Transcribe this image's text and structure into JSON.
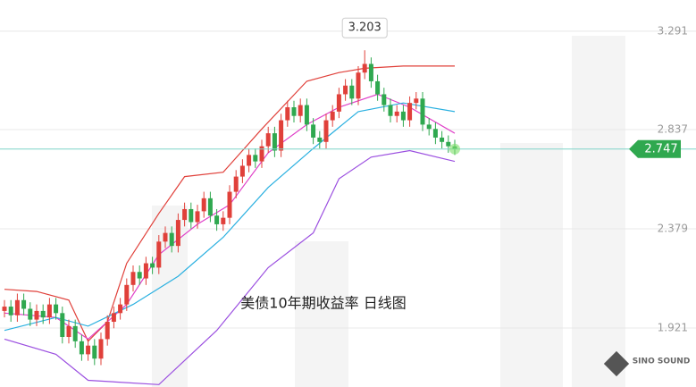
{
  "chart_data": {
    "type": "candlestick",
    "title": "美债10年期收益率  日线图",
    "watermark": "SINO SOUND",
    "up_color": "#e0403a",
    "down_color": "#2fa84f",
    "ylim": [
      1.649,
      3.435
    ],
    "yticks": [
      3.291,
      2.837,
      2.379,
      1.921
    ],
    "grid": true,
    "open": [
      2.0,
      2.02,
      1.98,
      2.05,
      2.01,
      1.96,
      2.0,
      1.97,
      2.03,
      1.99,
      1.88,
      1.93,
      1.86,
      1.8,
      1.84,
      1.78,
      1.87,
      1.95,
      1.99,
      2.03,
      2.12,
      2.18,
      2.15,
      2.22,
      2.2,
      2.32,
      2.36,
      2.3,
      2.42,
      2.47,
      2.41,
      2.46,
      2.52,
      2.44,
      2.4,
      2.43,
      2.55,
      2.62,
      2.67,
      2.72,
      2.69,
      2.76,
      2.82,
      2.74,
      2.88,
      2.94,
      2.9,
      2.95,
      2.86,
      2.8,
      2.78,
      2.88,
      2.92,
      3.0,
      3.04,
      2.98,
      3.1,
      3.14,
      3.06,
      3.0,
      2.95,
      2.9,
      2.92,
      2.88,
      2.96,
      2.98,
      2.86,
      2.84,
      2.8,
      2.78,
      2.76
    ],
    "high": [
      2.05,
      2.05,
      2.08,
      2.08,
      2.04,
      2.03,
      2.03,
      2.06,
      2.06,
      2.02,
      1.96,
      1.96,
      1.89,
      1.87,
      1.87,
      1.9,
      1.98,
      2.02,
      2.06,
      2.15,
      2.21,
      2.21,
      2.25,
      2.25,
      2.35,
      2.39,
      2.39,
      2.45,
      2.5,
      2.5,
      2.49,
      2.55,
      2.55,
      2.47,
      2.46,
      2.58,
      2.65,
      2.7,
      2.75,
      2.75,
      2.79,
      2.85,
      2.85,
      2.91,
      2.97,
      2.97,
      2.98,
      2.98,
      2.89,
      2.83,
      2.91,
      2.95,
      3.03,
      3.07,
      3.07,
      3.13,
      3.203,
      3.17,
      3.09,
      3.03,
      2.98,
      2.95,
      2.95,
      2.99,
      3.01,
      3.01,
      2.89,
      2.87,
      2.83,
      2.81,
      2.79
    ],
    "low": [
      1.97,
      1.95,
      1.95,
      1.98,
      1.93,
      1.93,
      1.94,
      1.94,
      1.96,
      1.85,
      1.85,
      1.83,
      1.77,
      1.77,
      1.75,
      1.75,
      1.84,
      1.92,
      1.96,
      2.0,
      2.09,
      2.12,
      2.12,
      2.17,
      2.17,
      2.29,
      2.27,
      2.27,
      2.39,
      2.38,
      2.38,
      2.43,
      2.41,
      2.37,
      2.37,
      2.4,
      2.52,
      2.59,
      2.64,
      2.66,
      2.66,
      2.73,
      2.71,
      2.71,
      2.85,
      2.87,
      2.87,
      2.83,
      2.77,
      2.75,
      2.75,
      2.85,
      2.89,
      2.97,
      2.95,
      2.95,
      3.07,
      3.03,
      2.97,
      2.92,
      2.87,
      2.87,
      2.85,
      2.85,
      2.93,
      2.83,
      2.81,
      2.77,
      2.75,
      2.73,
      2.72
    ],
    "close": [
      2.02,
      1.98,
      2.05,
      2.01,
      1.96,
      2.0,
      1.97,
      2.03,
      1.99,
      1.88,
      1.93,
      1.86,
      1.8,
      1.84,
      1.78,
      1.87,
      1.95,
      1.99,
      2.03,
      2.12,
      2.18,
      2.15,
      2.22,
      2.2,
      2.32,
      2.36,
      2.3,
      2.42,
      2.47,
      2.41,
      2.46,
      2.52,
      2.44,
      2.4,
      2.43,
      2.55,
      2.62,
      2.67,
      2.72,
      2.69,
      2.76,
      2.82,
      2.74,
      2.88,
      2.94,
      2.9,
      2.95,
      2.86,
      2.8,
      2.78,
      2.88,
      2.92,
      3.0,
      3.04,
      2.98,
      3.1,
      3.14,
      3.06,
      3.0,
      2.95,
      2.9,
      2.92,
      2.88,
      2.96,
      2.98,
      2.86,
      2.84,
      2.8,
      2.78,
      2.76,
      2.747
    ],
    "overlays": [
      {
        "color": "#e0403a",
        "x": [
          0,
          5,
          10,
          13,
          16,
          19,
          24,
          28,
          34,
          40,
          47,
          52,
          56,
          62,
          70
        ],
        "values": [
          2.1,
          2.09,
          2.05,
          1.86,
          1.95,
          2.22,
          2.45,
          2.62,
          2.64,
          2.84,
          3.06,
          3.1,
          3.12,
          3.13,
          3.13
        ]
      },
      {
        "color": "#9b4fe0",
        "x": [
          0,
          8,
          13,
          24,
          33,
          41,
          48,
          52,
          57,
          63,
          70
        ],
        "values": [
          1.87,
          1.8,
          1.68,
          1.66,
          1.91,
          2.2,
          2.36,
          2.61,
          2.71,
          2.74,
          2.69
        ]
      },
      {
        "color": "#e040c8",
        "x": [
          0,
          8,
          13,
          19,
          24,
          30,
          35,
          41,
          47,
          52,
          58,
          63,
          70
        ],
        "values": [
          1.99,
          1.97,
          1.87,
          2.03,
          2.26,
          2.4,
          2.49,
          2.73,
          2.86,
          2.94,
          3.0,
          2.94,
          2.82
        ]
      },
      {
        "color": "#2ab0e0",
        "x": [
          0,
          8,
          13,
          20,
          27,
          34,
          41,
          48,
          55,
          62,
          70
        ],
        "values": [
          1.91,
          1.97,
          1.93,
          2.03,
          2.16,
          2.34,
          2.57,
          2.75,
          2.92,
          2.96,
          2.92
        ]
      }
    ]
  }
}
